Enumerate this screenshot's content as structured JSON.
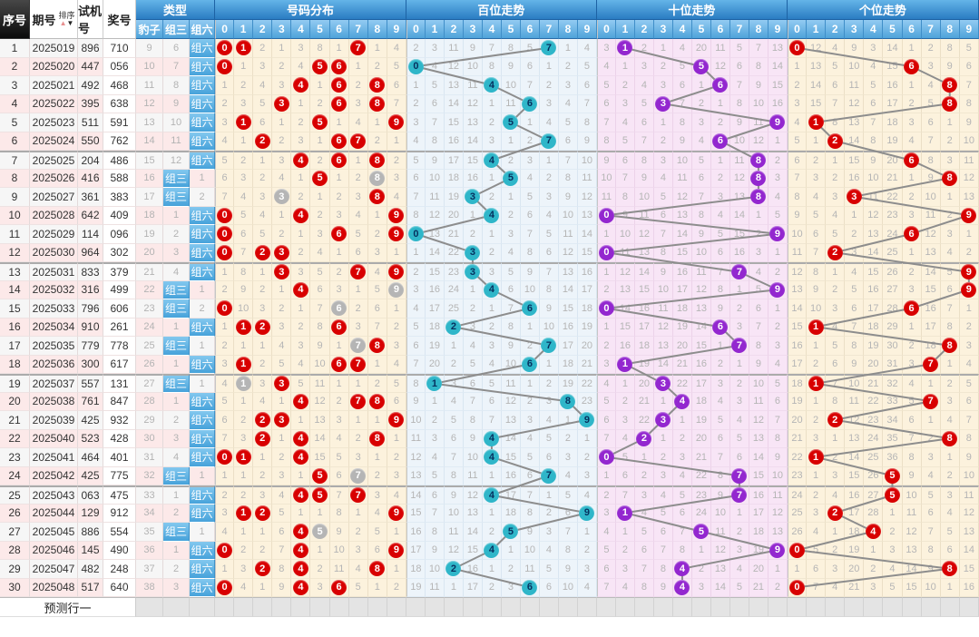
{
  "header": {
    "serial": "序号",
    "period": "期号",
    "sort": "排序",
    "test": "试机号",
    "win": "奖号",
    "type": "类型",
    "type_cols": [
      "豹子",
      "组三",
      "组六"
    ],
    "sections": [
      {
        "key": "dist",
        "title": "号码分布"
      },
      {
        "key": "bai",
        "title": "百位走势"
      },
      {
        "key": "shi",
        "title": "十位走势"
      },
      {
        "key": "ge",
        "title": "个位走势"
      }
    ],
    "digits": [
      "0",
      "1",
      "2",
      "3",
      "4",
      "5",
      "6",
      "7",
      "8",
      "9"
    ]
  },
  "footer": {
    "label": "预测行一"
  },
  "type_labels": {
    "zusan": "组三",
    "zuliu": "组六"
  },
  "colors": {
    "circle_red": "#d80000",
    "circle_gray": "#b5b5b5",
    "circle_teal": "#2fb6c9",
    "circle_purple": "#9327cf",
    "trend_line": "#8d8d8d",
    "header_blue": "#2a7cc2"
  },
  "rows": [
    {
      "seq": "1",
      "period": "2025019",
      "test": "896",
      "win": "710",
      "baozi": "9",
      "zusan": "6",
      "zuliu": "组六",
      "dist": "*0,*1,2,1,3,8,1,*7,1,4",
      "bai": "2,3,11,9,7,8,5,*7,1,4",
      "shi": "3,*1,2,1,4,20,11,5,7,13",
      "ge": "*0,12,4,9,3,14,1,2,8,5"
    },
    {
      "seq": "2",
      "period": "2025020",
      "test": "447",
      "win": "056",
      "baozi": "10",
      "zusan": "7",
      "zuliu": "组六",
      "dist": "*0,1,3,2,4,*5,*6,1,2,5",
      "bai": "*0,4,12,10,8,9,6,1,2,5",
      "shi": "4,1,3,2,5,*5,12,6,8,14",
      "ge": "1,13,5,10,4,15,*6,3,9,6"
    },
    {
      "seq": "3",
      "period": "2025021",
      "test": "492",
      "win": "468",
      "baozi": "11",
      "zusan": "8",
      "zuliu": "组六",
      "dist": "1,2,4,3,*4,1,*6,2,*8,6",
      "bai": "1,5,13,11,*4,10,7,2,3,6",
      "shi": "5,2,4,3,6,1,*6,7,9,15",
      "ge": "2,14,6,11,5,16,1,4,*8,7"
    },
    {
      "seq": "4",
      "period": "2025022",
      "test": "395",
      "win": "638",
      "baozi": "12",
      "zusan": "9",
      "zuliu": "组六",
      "dist": "2,3,5,*3,1,2,*6,3,*8,7",
      "bai": "2,6,14,12,1,11,*6,3,4,7",
      "shi": "6,3,5,*3,7,2,1,8,10,16",
      "ge": "3,15,7,12,6,17,2,5,*8,8"
    },
    {
      "seq": "5",
      "period": "2025023",
      "test": "511",
      "win": "591",
      "baozi": "13",
      "zusan": "10",
      "zuliu": "组六",
      "dist": "3,*1,6,1,2,*5,1,4,1,*9",
      "bai": "3,7,15,13,2,*5,1,4,5,8",
      "shi": "7,4,6,1,8,3,2,9,11,*9",
      "ge": "4,*1,8,13,7,18,3,6,1,9"
    },
    {
      "seq": "6",
      "period": "2025024",
      "test": "550",
      "win": "762",
      "baozi": "14",
      "zusan": "11",
      "zuliu": "组六",
      "dist": "4,1,*2,2,3,1,*6,*7,2,1",
      "bai": "4,8,16,14,3,1,2,*7,6,9",
      "shi": "8,5,7,2,9,4,*6,10,12,1",
      "ge": "5,1,*2,14,8,19,4,7,2,10"
    },
    {
      "seq": "7",
      "period": "2025025",
      "test": "204",
      "win": "486",
      "baozi": "15",
      "zusan": "12",
      "zuliu": "组六",
      "dist": "5,2,1,3,*4,2,*6,1,*8,2",
      "bai": "5,9,17,15,*4,2,3,1,7,10",
      "shi": "9,6,8,3,10,5,1,11,*8,2",
      "ge": "6,2,1,15,9,20,*6,8,3,11"
    },
    {
      "seq": "8",
      "period": "2025026",
      "test": "416",
      "win": "588",
      "baozi": "16",
      "zusan": "组三",
      "zuliu": "1",
      "dist": "6,3,2,4,1,*5,1,2,~8,3",
      "bai": "6,10,18,16,1,*5,4,2,8,11",
      "shi": "10,7,9,4,11,6,2,12,*8,3",
      "ge": "7,3,2,16,10,21,1,9,*8,12"
    },
    {
      "seq": "9",
      "period": "2025027",
      "test": "361",
      "win": "383",
      "baozi": "17",
      "zusan": "组三",
      "zuliu": "2",
      "dist": "7,4,3,~3,2,1,2,3,*8,4",
      "bai": "7,11,19,*3,2,1,5,3,9,12",
      "shi": "11,8,10,5,12,7,3,13,*8,4",
      "ge": "8,4,3,*3,11,22,2,10,1,13"
    },
    {
      "seq": "10",
      "period": "2025028",
      "test": "642",
      "win": "409",
      "baozi": "18",
      "zusan": "1",
      "zuliu": "组六",
      "dist": "*0,5,4,1,*4,2,3,4,1,*9",
      "bai": "8,12,20,1,*4,2,6,4,10,13",
      "shi": "*0,9,11,6,13,8,4,14,1,5",
      "ge": "9,5,4,1,12,23,3,11,2,*9"
    },
    {
      "seq": "11",
      "period": "2025029",
      "test": "114",
      "win": "096",
      "baozi": "19",
      "zusan": "2",
      "zuliu": "组六",
      "dist": "*0,6,5,2,1,3,*6,5,2,*9",
      "bai": "*0,13,21,2,1,3,7,5,11,14",
      "shi": "1,10,12,7,14,9,5,15,2,*9",
      "ge": "10,6,5,2,13,24,*6,12,3,1"
    },
    {
      "seq": "12",
      "period": "2025030",
      "test": "964",
      "win": "302",
      "baozi": "20",
      "zusan": "3",
      "zuliu": "组六",
      "dist": "*0,7,*2,*3,2,4,1,6,3,1",
      "bai": "1,14,22,*3,2,4,8,6,12,15",
      "shi": "*0,11,13,8,15,10,6,16,3,1",
      "ge": "11,7,*2,3,14,25,1,13,4,2"
    },
    {
      "seq": "13",
      "period": "2025031",
      "test": "833",
      "win": "379",
      "baozi": "21",
      "zusan": "4",
      "zuliu": "组六",
      "dist": "1,8,1,*3,3,5,2,*7,4,*9",
      "bai": "2,15,23,*3,3,5,9,7,13,16",
      "shi": "1,12,14,9,16,11,7,*7,4,2",
      "ge": "12,8,1,4,15,26,2,14,5,*9"
    },
    {
      "seq": "14",
      "period": "2025032",
      "test": "316",
      "win": "499",
      "baozi": "22",
      "zusan": "组三",
      "zuliu": "1",
      "dist": "2,9,2,1,*4,6,3,1,5,~9",
      "bai": "3,16,24,1,*4,6,10,8,14,17",
      "shi": "2,13,15,10,17,12,8,1,5,*9",
      "ge": "13,9,2,5,16,27,3,15,6,*9"
    },
    {
      "seq": "15",
      "period": "2025033",
      "test": "796",
      "win": "606",
      "baozi": "23",
      "zusan": "组三",
      "zuliu": "2",
      "dist": "*0,10,3,2,1,7,~6,2,6,1",
      "bai": "4,17,25,2,1,7,*6,9,15,18",
      "shi": "*0,14,16,11,18,13,9,2,6,1",
      "ge": "14,10,3,6,17,28,*6,16,7,1"
    },
    {
      "seq": "16",
      "period": "2025034",
      "test": "910",
      "win": "261",
      "baozi": "24",
      "zusan": "1",
      "zuliu": "组六",
      "dist": "1,*1,*2,3,2,8,*6,3,7,2",
      "bai": "5,18,*2,3,2,8,1,10,16,19",
      "shi": "1,15,17,12,19,14,*6,3,7,2",
      "ge": "15,*1,4,7,18,29,1,17,8,2"
    },
    {
      "seq": "17",
      "period": "2025035",
      "test": "779",
      "win": "778",
      "baozi": "25",
      "zusan": "组三",
      "zuliu": "1",
      "dist": "2,1,1,4,3,9,1,~7,*8,3",
      "bai": "6,19,1,4,3,9,2,*7,17,20",
      "shi": "2,16,18,13,20,15,1,*7,8,3",
      "ge": "16,1,5,8,19,30,2,18,*8,3"
    },
    {
      "seq": "18",
      "period": "2025036",
      "test": "300",
      "win": "617",
      "baozi": "26",
      "zusan": "1",
      "zuliu": "组六",
      "dist": "3,*1,2,5,4,10,*6,*7,1,4",
      "bai": "7,20,2,5,4,10,*6,1,18,21",
      "shi": "3,*1,19,14,21,16,2,1,9,4",
      "ge": "17,2,6,9,20,31,3,*7,1,4"
    },
    {
      "seq": "19",
      "period": "2025037",
      "test": "557",
      "win": "131",
      "baozi": "27",
      "zusan": "组三",
      "zuliu": "1",
      "dist": "4,~1,3,*3,5,11,1,1,2,5",
      "bai": "8,*1,3,6,5,11,1,2,19,22",
      "shi": "4,1,20,*3,22,17,3,2,10,5",
      "ge": "18,*1,7,10,21,32,4,1,2,5"
    },
    {
      "seq": "20",
      "period": "2025038",
      "test": "761",
      "win": "847",
      "baozi": "28",
      "zusan": "1",
      "zuliu": "组六",
      "dist": "5,1,4,1,*4,12,2,*7,*8,6",
      "bai": "9,1,4,7,6,12,2,3,*8,23",
      "shi": "5,2,21,1,*4,18,4,3,11,6",
      "ge": "19,1,8,11,22,33,5,*7,3,6"
    },
    {
      "seq": "21",
      "period": "2025039",
      "test": "425",
      "win": "932",
      "baozi": "29",
      "zusan": "2",
      "zuliu": "组六",
      "dist": "6,2,*2,*3,1,13,3,1,1,*9",
      "bai": "10,2,5,8,7,13,3,4,1,*9",
      "shi": "6,3,22,*3,1,19,5,4,12,7",
      "ge": "20,2,*2,12,23,34,6,1,4,7"
    },
    {
      "seq": "22",
      "period": "2025040",
      "test": "523",
      "win": "428",
      "baozi": "30",
      "zusan": "3",
      "zuliu": "组六",
      "dist": "7,3,*2,1,*4,14,4,2,*8,1",
      "bai": "11,3,6,9,*4,14,4,5,2,1",
      "shi": "7,4,*2,1,2,20,6,5,13,8",
      "ge": "21,3,1,13,24,35,7,2,*8,8"
    },
    {
      "seq": "23",
      "period": "2025041",
      "test": "464",
      "win": "401",
      "baozi": "31",
      "zusan": "4",
      "zuliu": "组六",
      "dist": "*0,*1,1,2,*4,15,5,3,1,2",
      "bai": "12,4,7,10,*4,15,5,6,3,2",
      "shi": "*0,5,1,2,3,21,7,6,14,9",
      "ge": "22,*1,2,14,25,36,8,3,1,9"
    },
    {
      "seq": "24",
      "period": "2025042",
      "test": "425",
      "win": "775",
      "baozi": "32",
      "zusan": "组三",
      "zuliu": "1",
      "dist": "1,1,2,3,1,*5,6,~7,2,3",
      "bai": "13,5,8,11,1,16,6,*7,4,3",
      "shi": "1,6,2,3,4,22,8,*7,15,10",
      "ge": "23,1,3,15,26,*5,9,4,2,10"
    },
    {
      "seq": "25",
      "period": "2025043",
      "test": "063",
      "win": "475",
      "baozi": "33",
      "zusan": "1",
      "zuliu": "组六",
      "dist": "2,2,3,4,*4,*5,7,*7,3,4",
      "bai": "14,6,9,12,*4,17,7,1,5,4",
      "shi": "2,7,3,4,5,23,9,*7,16,11",
      "ge": "24,2,4,16,27,*5,10,5,3,11"
    },
    {
      "seq": "26",
      "period": "2025044",
      "test": "129",
      "win": "912",
      "baozi": "34",
      "zusan": "2",
      "zuliu": "组六",
      "dist": "3,*1,*2,5,1,1,8,1,4,*9",
      "bai": "15,7,10,13,1,18,8,2,6,*9",
      "shi": "3,*1,4,5,6,24,10,1,17,12",
      "ge": "25,3,*2,17,28,1,11,6,4,12"
    },
    {
      "seq": "27",
      "period": "2025045",
      "test": "886",
      "win": "554",
      "baozi": "35",
      "zusan": "组三",
      "zuliu": "1",
      "dist": "4,1,1,6,*4,~5,9,2,5,1",
      "bai": "16,8,11,14,2,*5,9,3,7,1",
      "shi": "4,1,5,6,7,*5,11,2,18,13",
      "ge": "26,4,1,18,*4,2,12,7,5,13"
    },
    {
      "seq": "28",
      "period": "2025046",
      "test": "145",
      "win": "490",
      "baozi": "36",
      "zusan": "1",
      "zuliu": "组六",
      "dist": "*0,2,2,7,*4,1,10,3,6,*9",
      "bai": "17,9,12,15,*4,1,10,4,8,2",
      "shi": "5,2,6,7,8,1,12,3,19,*9",
      "ge": "*0,5,2,19,1,3,13,8,6,14"
    },
    {
      "seq": "29",
      "period": "2025047",
      "test": "482",
      "win": "248",
      "baozi": "37",
      "zusan": "2",
      "zuliu": "组六",
      "dist": "1,3,*2,8,*4,2,11,4,*8,1",
      "bai": "18,10,*2,16,1,2,11,5,9,3",
      "shi": "6,3,7,8,*4,2,13,4,20,1",
      "ge": "1,6,3,20,2,4,14,9,*8,15"
    },
    {
      "seq": "30",
      "period": "2025048",
      "test": "517",
      "win": "640",
      "baozi": "38",
      "zusan": "3",
      "zuliu": "组六",
      "dist": "*0,4,1,9,*4,3,*6,5,1,2",
      "bai": "19,11,1,17,2,3,*6,6,10,4",
      "shi": "7,4,8,9,*4,3,14,5,21,2",
      "ge": "*0,7,4,21,3,5,15,10,1,16"
    }
  ]
}
